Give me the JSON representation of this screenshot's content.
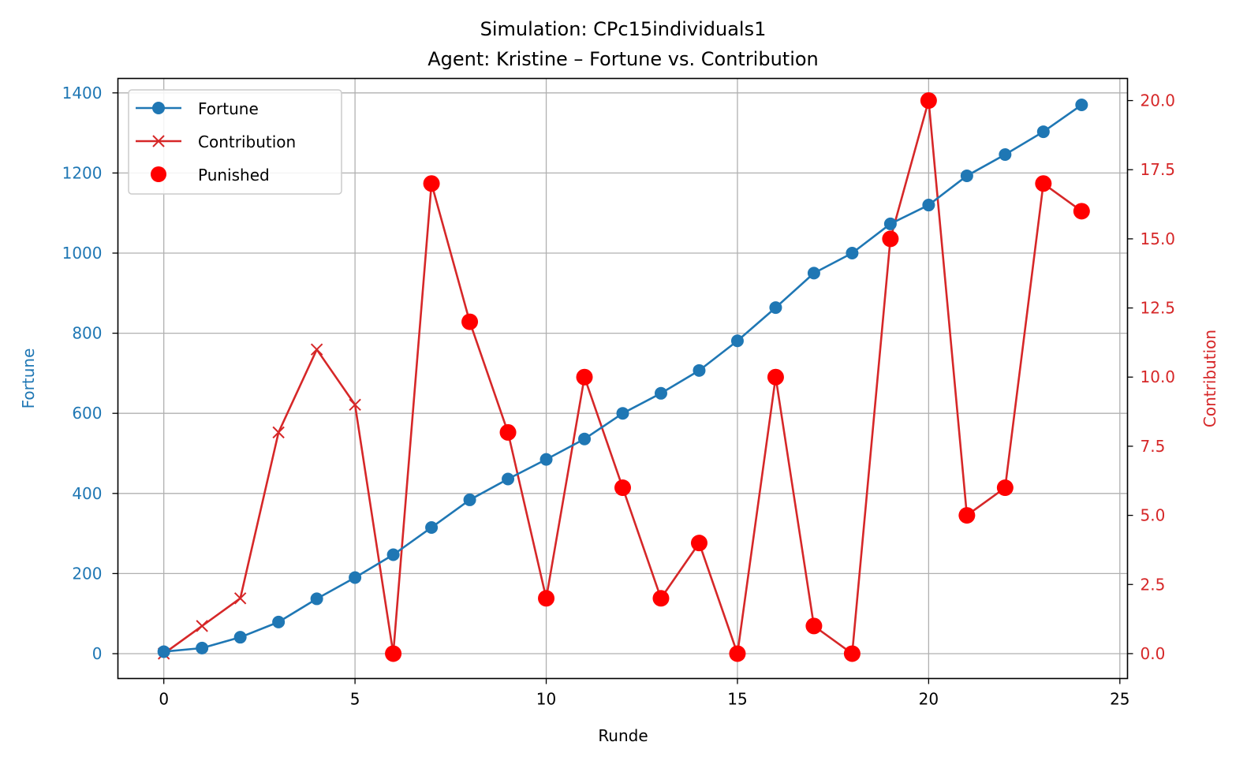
{
  "chart_data": {
    "type": "line",
    "title": "Simulation: CPc15individuals1",
    "subtitle": "Agent: Kristine – Fortune vs. Contribution",
    "xlabel": "Runde",
    "ylabel_left": "Fortune",
    "ylabel_right": "Contribution",
    "xlim": [
      -1.2,
      25.2
    ],
    "ylim_left": [
      -62,
      1436
    ],
    "ylim_right": [
      -0.9,
      20.8
    ],
    "x_ticks": [
      0,
      5,
      10,
      15,
      20,
      25
    ],
    "y_ticks_left": [
      0,
      200,
      400,
      600,
      800,
      1000,
      1200,
      1400
    ],
    "y_ticks_right": [
      "0.0",
      "2.5",
      "5.0",
      "7.5",
      "10.0",
      "12.5",
      "15.0",
      "17.5",
      "20.0"
    ],
    "grid": true,
    "legend_position": "top-left",
    "x": [
      0,
      1,
      2,
      3,
      4,
      5,
      6,
      7,
      8,
      9,
      10,
      11,
      12,
      13,
      14,
      15,
      16,
      17,
      18,
      19,
      20,
      21,
      22,
      23,
      24
    ],
    "series": [
      {
        "name": "Fortune",
        "axis": "left",
        "color": "#1f77b4",
        "marker": "circle",
        "values": [
          5,
          14,
          41,
          79,
          137,
          190,
          247,
          315,
          384,
          436,
          485,
          536,
          600,
          650,
          707,
          781,
          864,
          950,
          1000,
          1073,
          1120,
          1193,
          1246,
          1303,
          1370
        ]
      },
      {
        "name": "Contribution",
        "axis": "right",
        "color": "#d62728",
        "marker": "x",
        "values": [
          0,
          1,
          2,
          8,
          11,
          9,
          0,
          17,
          12,
          8,
          2,
          10,
          6,
          2,
          4,
          0,
          10,
          1,
          0,
          15,
          20,
          5,
          6,
          17,
          16
        ]
      },
      {
        "name": "Punished",
        "axis": "right",
        "color": "#ff0000",
        "marker": "filled-circle",
        "x": [
          6,
          7,
          8,
          9,
          10,
          11,
          12,
          13,
          14,
          15,
          16,
          17,
          18,
          19,
          20,
          21,
          22,
          23,
          24
        ],
        "values": [
          0,
          17,
          12,
          8,
          2,
          10,
          6,
          2,
          4,
          0,
          10,
          1,
          0,
          15,
          20,
          5,
          6,
          17,
          16
        ]
      }
    ]
  },
  "legend": {
    "items": [
      "Fortune",
      "Contribution",
      "Punished"
    ]
  }
}
